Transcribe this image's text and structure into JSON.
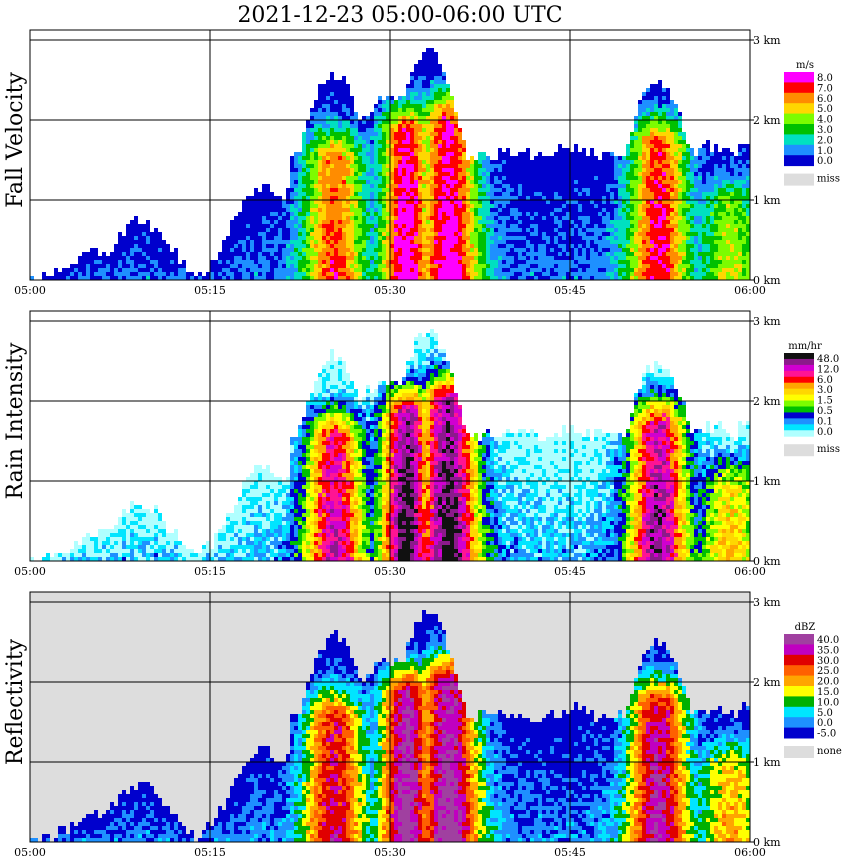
{
  "title": "2021-12-23   05:00-06:00 UTC",
  "chart_data": [
    {
      "type": "heatmap",
      "title": "Fall Velocity",
      "ylabel": "Fall Velocity",
      "x_ticks": [
        "05:00",
        "05:15",
        "05:30",
        "05:45",
        "06:00"
      ],
      "y_ticks": [
        "0 km",
        "1 km",
        "2 km",
        "3 km"
      ],
      "ylim_km": [
        0,
        3
      ],
      "xlim": [
        "05:00",
        "06:00"
      ],
      "legend": {
        "unit": "m/s",
        "labels": [
          "8.0",
          "7.0",
          "6.0",
          "5.0",
          "4.0",
          "3.0",
          "2.0",
          "1.0",
          "0.0"
        ],
        "colors": [
          "#ff00ff",
          "#ff0000",
          "#ff8c00",
          "#ffd700",
          "#7cfc00",
          "#00c000",
          "#00e0c0",
          "#1e90ff",
          "#0000cd"
        ],
        "missing_label": "miss",
        "missing_color": "#dddddd"
      }
    },
    {
      "type": "heatmap",
      "title": "Rain Intensity",
      "ylabel": "Rain Intensity",
      "x_ticks": [
        "05:00",
        "05:15",
        "05:30",
        "05:45",
        "06:00"
      ],
      "y_ticks": [
        "0 km",
        "1 km",
        "2 km",
        "3 km"
      ],
      "ylim_km": [
        0,
        3
      ],
      "xlim": [
        "05:00",
        "06:00"
      ],
      "legend": {
        "unit": "mm/hr",
        "labels": [
          "48.0",
          "12.0",
          "6.0",
          "3.0",
          "1.5",
          "0.5",
          "0.1",
          "0.0"
        ],
        "colors": [
          "#111111",
          "#8b1a8b",
          "#d000d0",
          "#ff1493",
          "#ff0000",
          "#ffa500",
          "#ffd700",
          "#ffff00",
          "#7cfc00",
          "#00c000",
          "#0000cd",
          "#1e90ff",
          "#00e5ff",
          "#b0ffff"
        ],
        "missing_label": "miss",
        "missing_color": "#dddddd"
      }
    },
    {
      "type": "heatmap",
      "title": "Reflectivity",
      "ylabel": "Reflectivity",
      "x_ticks": [
        "05:00",
        "05:15",
        "05:30",
        "05:45",
        "06:00"
      ],
      "y_ticks": [
        "0 km",
        "1 km",
        "2 km",
        "3 km"
      ],
      "ylim_km": [
        0,
        3
      ],
      "xlim": [
        "05:00",
        "06:00"
      ],
      "legend": {
        "unit": "dBZ",
        "labels": [
          "40.0",
          "35.0",
          "30.0",
          "25.0",
          "20.0",
          "15.0",
          "10.0",
          "5.0",
          "0.0",
          "-5.0"
        ],
        "colors": [
          "#a040a0",
          "#c000c0",
          "#e00000",
          "#ff6000",
          "#ffa500",
          "#ffff00",
          "#00b000",
          "#00e5ff",
          "#1e90ff",
          "#0000cd"
        ],
        "missing_label": "none",
        "missing_color": "#dddddd"
      }
    }
  ]
}
